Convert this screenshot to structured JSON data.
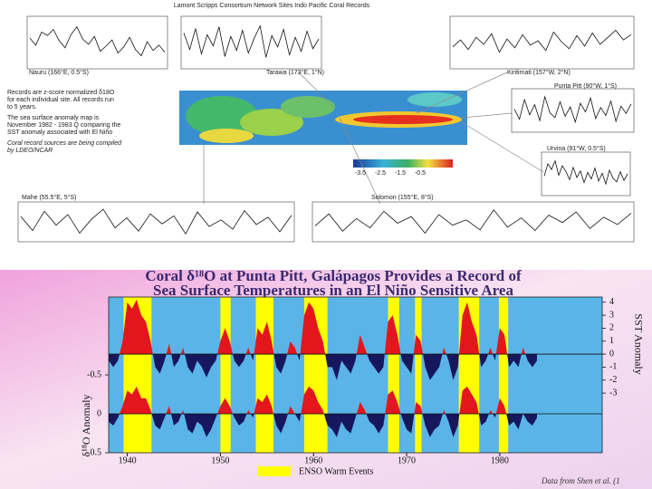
{
  "top_figure": {
    "title": "Lamont Scripps Consortium Network Sites Indo Pacific Coral Records",
    "notes": [
      "Records are z-score normalized δ18O",
      "for each individual site. All records run",
      "to 5 years.",
      "The sea surface anomaly map is",
      "November 1982 - 1983 Q comparing the",
      "SST anomaly associated with El Niño",
      "Coral record sources are being compiled",
      "by LDEO/NCAR"
    ],
    "colorbar_ticks": [
      -3.5,
      -2.5,
      -1.5,
      -0.5
    ]
  },
  "chart_data": [
    {
      "type": "area",
      "title": "Coral δ¹⁸O  at Punta Pitt, Galápagos Provides a Record of",
      "subtitle": "Sea Surface Temperatures in an El Niño Sensitive Area",
      "ylabel": "δ¹⁸O Anomaly",
      "y2label": "SST Anomaly",
      "source": "Data from Shen et al. (1",
      "xlim": [
        1938,
        1991
      ],
      "xticks": [
        1940,
        1950,
        1960,
        1970,
        1980
      ],
      "ylim": [
        0.5,
        -1.5
      ],
      "yticks": [
        -0.5,
        0,
        0.5
      ],
      "y2lim": [
        -7.6,
        4.4
      ],
      "y2ticks": [
        4,
        3,
        2,
        1,
        0,
        -1,
        -2,
        -3
      ],
      "background": "#5ab4e8",
      "shaded_label": "ENSO Warm Events",
      "shaded_color": "#ffff00",
      "shaded_periods": [
        [
          1939.6,
          1942.6
        ],
        [
          1950,
          1951.1
        ],
        [
          1953.8,
          1955.7
        ],
        [
          1959,
          1961.5
        ],
        [
          1968,
          1969.2
        ],
        [
          1970.9,
          1971.6
        ],
        [
          1975.6,
          1977.8
        ],
        [
          1979.9,
          1980.9
        ]
      ],
      "x": [
        1938,
        1938.5,
        1939,
        1939.5,
        1940,
        1940.5,
        1941,
        1941.5,
        1942,
        1942.5,
        1943,
        1943.5,
        1944,
        1944.5,
        1945,
        1945.5,
        1946,
        1946.5,
        1947,
        1947.5,
        1948,
        1948.5,
        1949,
        1949.5,
        1950,
        1950.5,
        1951,
        1951.5,
        1952,
        1952.5,
        1953,
        1953.5,
        1954,
        1954.5,
        1955,
        1955.5,
        1956,
        1956.5,
        1957,
        1957.5,
        1958,
        1958.5,
        1959,
        1959.5,
        1960,
        1960.5,
        1961,
        1961.5,
        1962,
        1962.5,
        1963,
        1963.5,
        1964,
        1964.5,
        1965,
        1965.5,
        1966,
        1966.5,
        1967,
        1967.5,
        1968,
        1968.5,
        1969,
        1969.5,
        1970,
        1970.5,
        1971,
        1971.5,
        1972,
        1972.5,
        1973,
        1973.5,
        1974,
        1974.5,
        1975,
        1975.5,
        1976,
        1976.5,
        1977,
        1977.5,
        1978,
        1978.5,
        1979,
        1979.5,
        1980,
        1980.5,
        1981,
        1981.5,
        1982,
        1982.5,
        1983,
        1983.5,
        1984
      ],
      "series": [
        {
          "axis": "y2",
          "color_above": "#e3161b",
          "color_below": "#17175e",
          "values": [
            -0.5,
            -1,
            -0.5,
            1,
            4,
            3.5,
            4.2,
            3,
            2.5,
            1,
            -1,
            -1.5,
            -0.5,
            0.8,
            -1,
            -0.5,
            0.5,
            -1,
            -1.5,
            -0.5,
            -1,
            -1.8,
            -1,
            -0.5,
            1,
            2,
            1,
            -0.5,
            -1,
            -0.5,
            0.5,
            -0.5,
            2,
            1.5,
            2.5,
            1,
            -1,
            -1.5,
            -0.5,
            1,
            0.5,
            -0.5,
            3,
            4,
            3.5,
            2,
            1,
            -1,
            -1,
            -2,
            -0.5,
            -1,
            -1.5,
            -0.5,
            1.5,
            0.5,
            -0.5,
            -1,
            -1.5,
            -1,
            2.5,
            3,
            1.5,
            -0.5,
            -1,
            -1.5,
            1.5,
            1,
            -1,
            -2,
            -1.5,
            -1,
            0.5,
            -0.5,
            -2,
            -1,
            3,
            4,
            2.5,
            1.5,
            -1,
            -0.5,
            0.5,
            -0.5,
            2,
            1.5,
            -1,
            -0.5,
            -1,
            0.5,
            -0.5,
            -1,
            -0.5
          ]
        },
        {
          "axis": "y",
          "color_above": "#e3161b",
          "color_below": "#17175e",
          "values": [
            0.1,
            0.15,
            0.05,
            -0.1,
            -0.3,
            -0.25,
            -0.35,
            -0.2,
            -0.2,
            -0.05,
            0.15,
            0.2,
            0.05,
            -0.1,
            0.15,
            0.1,
            -0.05,
            0.2,
            0.25,
            0.1,
            0.15,
            0.3,
            0.2,
            0.05,
            -0.1,
            -0.2,
            -0.1,
            0.05,
            0.15,
            0.1,
            -0.05,
            0.05,
            -0.2,
            -0.15,
            -0.25,
            -0.1,
            0.15,
            0.25,
            0.1,
            -0.1,
            0,
            0.1,
            -0.25,
            -0.35,
            -0.3,
            -0.15,
            -0.05,
            0.15,
            0.2,
            0.3,
            0.1,
            0.2,
            0.25,
            0.05,
            -0.15,
            -0.05,
            0.1,
            0.15,
            0.25,
            0.15,
            -0.25,
            -0.3,
            -0.15,
            0.05,
            0.2,
            0.25,
            -0.15,
            -0.1,
            0.15,
            0.3,
            0.2,
            0.15,
            -0.05,
            0.1,
            0.3,
            0.15,
            -0.3,
            -0.35,
            -0.25,
            -0.15,
            0.15,
            0.1,
            -0.05,
            0.05,
            -0.2,
            -0.1,
            0.15,
            0.1,
            0.2,
            0,
            0.1,
            0.15,
            0.05
          ]
        }
      ]
    },
    {
      "type": "line",
      "title": "Nauru (166°E, 0.5°S)",
      "ylim": [
        -3,
        3
      ],
      "color": "#111111",
      "values": [
        0.5,
        -0.3,
        1.2,
        0.8,
        1.5,
        0.2,
        -0.6,
        0.9,
        1.8,
        0.4,
        -0.2,
        0.7,
        -1.0,
        -0.4,
        0.3,
        -1.2,
        -0.5,
        0.6,
        -0.8,
        -1.5,
        0.1,
        -0.9,
        -0.3,
        -1.1
      ]
    },
    {
      "type": "line",
      "title": "Tarawa (173°E, 1°N)",
      "ylim": [
        -3,
        3
      ],
      "color": "#111111",
      "values": [
        1.1,
        -0.8,
        1.6,
        -1.3,
        0.9,
        -0.4,
        1.8,
        -1.6,
        0.7,
        -0.9,
        1.4,
        -1.2,
        0.5,
        1.9,
        -1.7,
        0.8,
        -0.5,
        1.5,
        -1.4,
        0.6,
        -1.0,
        1.3,
        -0.7,
        0.4
      ]
    },
    {
      "type": "line",
      "title": "Kiritimati (157°W, 2°N)",
      "ylim": [
        -3,
        3
      ],
      "color": "#111111",
      "values": [
        -0.5,
        0.3,
        -0.8,
        0.6,
        -0.2,
        1.0,
        -1.1,
        0.4,
        -0.6,
        0.9,
        -0.3,
        0.2,
        -0.9,
        1.2,
        0.1,
        -0.7,
        0.8,
        -0.4,
        1.1,
        -0.2,
        0.6,
        1.4,
        0.3,
        0.9
      ]
    },
    {
      "type": "line",
      "title": "Punta Pitt (90°W, 1°S)",
      "ylim": [
        -3,
        3
      ],
      "color": "#111111",
      "values": [
        0.2,
        -1.2,
        1.5,
        -0.6,
        0.8,
        -1.4,
        1.9,
        -0.3,
        -1.0,
        1.2,
        -0.8,
        0.5,
        -1.6,
        1.0,
        -0.2,
        1.7,
        -1.1,
        0.4,
        -0.7,
        1.3,
        -1.5,
        0.6,
        -0.4,
        0.9
      ]
    },
    {
      "type": "line",
      "title": "Urvina (91°W, 0.5°S)",
      "ylim": [
        -3,
        3
      ],
      "color": "#111111",
      "values": [
        -0.3,
        1.4,
        0.6,
        1.8,
        -0.2,
        1.1,
        0.3,
        -0.8,
        0.9,
        -0.5,
        0.4,
        -1.2,
        0.2,
        -0.7,
        0.8,
        -1.0,
        0.1,
        -1.4,
        0.5,
        -0.6,
        -1.1,
        0.3,
        -0.9,
        0.0
      ]
    },
    {
      "type": "line",
      "title": "Mahe (55.5°E, 5°S)",
      "ylim": [
        -3,
        3
      ],
      "color": "#111111",
      "values": [
        0.8,
        -1.3,
        1.6,
        -0.5,
        1.1,
        -1.7,
        0.4,
        1.9,
        -0.9,
        0.6,
        -1.4,
        1.2,
        -0.3,
        0.9,
        -1.8,
        1.5,
        -0.7,
        0.3,
        -1.1,
        1.7,
        -0.4,
        0.7,
        -1.5,
        1.0
      ]
    },
    {
      "type": "line",
      "title": "Solomon (155°E, 8°S)",
      "ylim": [
        -3,
        3
      ],
      "color": "#111111",
      "values": [
        -0.6,
        1.2,
        -1.4,
        0.5,
        -0.9,
        1.6,
        -0.2,
        0.8,
        -1.7,
        1.1,
        -0.5,
        0.3,
        -1.2,
        1.8,
        -0.8,
        0.6,
        -1.3,
        1.0,
        -0.1,
        1.5,
        -1.0,
        0.7,
        -0.4,
        1.3
      ]
    }
  ]
}
